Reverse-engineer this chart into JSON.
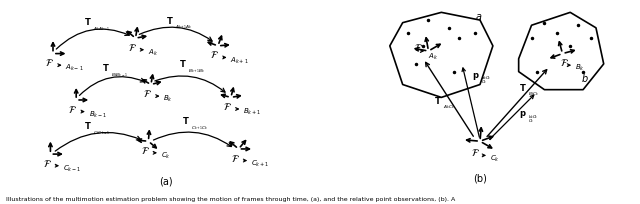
{
  "caption": "Illustrations of the multimotion estimation problem showing the motion of frames through time, (a), and the relative point observations, (b). A",
  "label_a": "(a)",
  "label_b": "(b)",
  "bg_color": "#ffffff",
  "text_color": "#000000",
  "fig_width": 6.4,
  "fig_height": 2.05
}
